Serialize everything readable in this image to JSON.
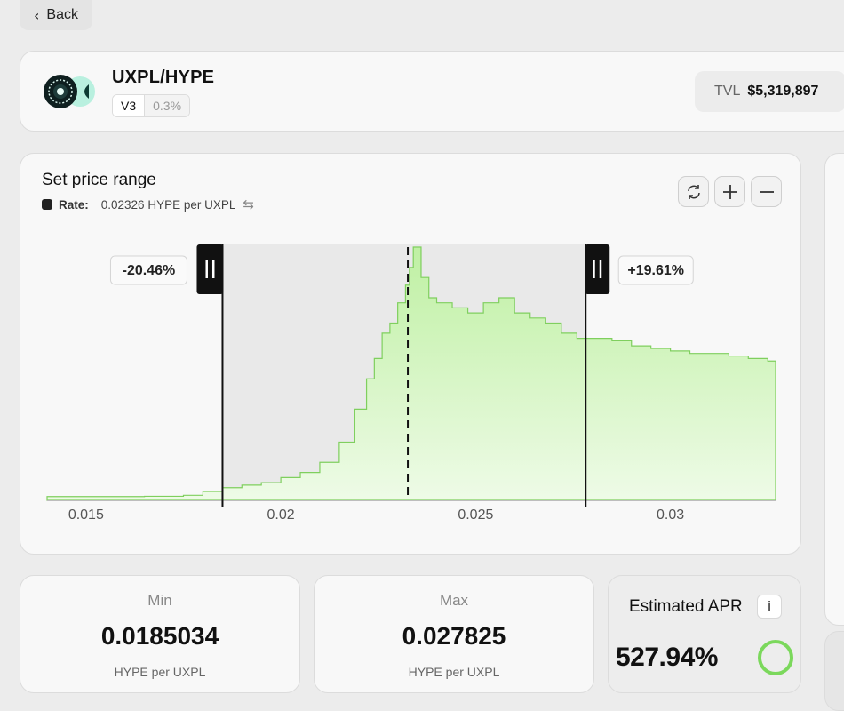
{
  "nav": {
    "back_label": "Back"
  },
  "pair": {
    "title": "UXPL/HYPE",
    "version": "V3",
    "fee": "0.3%",
    "tvl_label": "TVL",
    "tvl_value": "$5,319,897"
  },
  "range": {
    "title": "Set price range",
    "rate_label": "Rate:",
    "rate_value": "0.02326 HYPE per UXPL",
    "lower_pct": "-20.46%",
    "upper_pct": "+19.61%",
    "controls": [
      "refresh-icon",
      "zoom-in-icon",
      "zoom-out-icon"
    ]
  },
  "chart_data": {
    "type": "area",
    "x_ticks": [
      "0.015",
      "0.02",
      "0.025",
      "0.03"
    ],
    "xlim": [
      0.014,
      0.0327
    ],
    "current_price": 0.02326,
    "range_min": 0.0185034,
    "range_max": 0.027825,
    "fill_color": "#c9f0b4",
    "line_color": "#7fcf5e",
    "x": [
      0.014,
      0.015,
      0.0165,
      0.0175,
      0.018,
      0.0185,
      0.019,
      0.0195,
      0.02,
      0.0205,
      0.021,
      0.0215,
      0.0219,
      0.0222,
      0.0224,
      0.0226,
      0.0228,
      0.023,
      0.0232,
      0.0233,
      0.0234,
      0.0236,
      0.0238,
      0.024,
      0.0244,
      0.0248,
      0.0252,
      0.0256,
      0.026,
      0.0264,
      0.0268,
      0.0272,
      0.0276,
      0.028,
      0.0285,
      0.029,
      0.0295,
      0.03,
      0.0305,
      0.031,
      0.0315,
      0.032,
      0.0325,
      0.0327
    ],
    "y": [
      0.015,
      0.015,
      0.016,
      0.02,
      0.035,
      0.05,
      0.06,
      0.07,
      0.09,
      0.11,
      0.15,
      0.23,
      0.36,
      0.48,
      0.56,
      0.66,
      0.7,
      0.78,
      0.85,
      0.92,
      1.0,
      0.88,
      0.8,
      0.78,
      0.76,
      0.74,
      0.78,
      0.8,
      0.74,
      0.72,
      0.7,
      0.66,
      0.64,
      0.64,
      0.63,
      0.61,
      0.6,
      0.59,
      0.58,
      0.58,
      0.57,
      0.56,
      0.55,
      0.55
    ]
  },
  "min_box": {
    "label": "Min",
    "value": "0.0185034",
    "unit": "HYPE per UXPL"
  },
  "max_box": {
    "label": "Max",
    "value": "0.027825",
    "unit": "HYPE per UXPL"
  },
  "apr": {
    "title": "Estimated APR",
    "info": "i",
    "value": "527.94%",
    "ring_color": "#7bd85c"
  }
}
